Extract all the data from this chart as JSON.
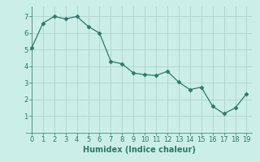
{
  "x": [
    0,
    1,
    2,
    3,
    4,
    5,
    6,
    7,
    8,
    9,
    10,
    11,
    12,
    13,
    14,
    15,
    16,
    17,
    18,
    19
  ],
  "y": [
    5.1,
    6.6,
    7.0,
    6.85,
    7.0,
    6.4,
    6.0,
    4.3,
    4.15,
    3.6,
    3.5,
    3.45,
    3.7,
    3.05,
    2.6,
    2.75,
    1.6,
    1.15,
    1.5,
    2.35
  ],
  "line_color": "#2a7a6a",
  "marker": "D",
  "marker_size": 2.5,
  "bg_color": "#cceee8",
  "grid_color": "#aad4cc",
  "xlabel": "Humidex (Indice chaleur)",
  "xlabel_fontsize": 7,
  "tick_fontsize": 6,
  "ylim": [
    0,
    7.6
  ],
  "xlim": [
    -0.5,
    19.5
  ],
  "yticks": [
    1,
    2,
    3,
    4,
    5,
    6,
    7
  ],
  "xticks": [
    0,
    1,
    2,
    3,
    4,
    5,
    6,
    7,
    8,
    9,
    10,
    11,
    12,
    13,
    14,
    15,
    16,
    17,
    18,
    19
  ]
}
